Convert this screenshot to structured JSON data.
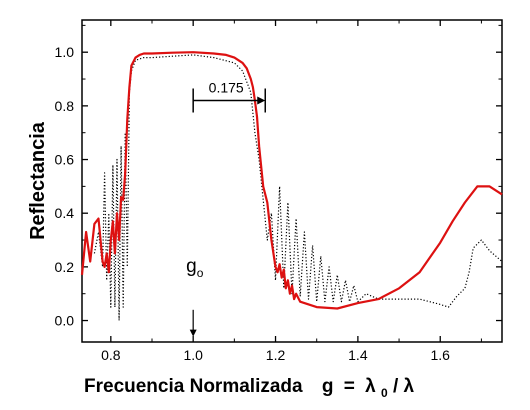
{
  "chart_data": {
    "type": "line",
    "title": "",
    "xlabel": "Frecuencia Normalizada",
    "xlabel_formula": {
      "g": "g",
      "eq": "=",
      "lam": "λ",
      "sub": "0",
      "slash": "/",
      "lam2": "λ"
    },
    "ylabel": "Reflectancia",
    "xlim": [
      0.73,
      1.75
    ],
    "ylim": [
      -0.08,
      1.12
    ],
    "x_ticks": [
      0.8,
      1.0,
      1.2,
      1.4,
      1.6
    ],
    "x_tick_labels": [
      "0.8",
      "1.0",
      "1.2",
      "1.4",
      "1.6"
    ],
    "y_ticks": [
      0.0,
      0.2,
      0.4,
      0.6,
      0.8,
      1.0
    ],
    "y_tick_labels": [
      "0.0",
      "0.2",
      "0.4",
      "0.6",
      "0.8",
      "1.0"
    ],
    "grid": false,
    "legend": "none",
    "series": [
      {
        "style": "solid",
        "color": "#dd1111",
        "x": [
          0.73,
          0.74,
          0.75,
          0.76,
          0.77,
          0.78,
          0.785,
          0.79,
          0.795,
          0.8,
          0.805,
          0.81,
          0.815,
          0.82,
          0.825,
          0.83,
          0.835,
          0.84,
          0.845,
          0.85,
          0.86,
          0.87,
          0.88,
          0.9,
          0.95,
          1.0,
          1.05,
          1.08,
          1.1,
          1.12,
          1.13,
          1.14,
          1.145,
          1.15,
          1.155,
          1.16,
          1.17,
          1.18,
          1.19,
          1.2,
          1.205,
          1.21,
          1.215,
          1.22,
          1.225,
          1.23,
          1.235,
          1.24,
          1.245,
          1.25,
          1.26,
          1.27,
          1.3,
          1.35,
          1.4,
          1.45,
          1.5,
          1.55,
          1.6,
          1.63,
          1.66,
          1.69,
          1.72,
          1.75
        ],
        "y": [
          0.17,
          0.33,
          0.22,
          0.36,
          0.38,
          0.22,
          0.2,
          0.25,
          0.18,
          0.3,
          0.37,
          0.25,
          0.4,
          0.3,
          0.46,
          0.45,
          0.55,
          0.75,
          0.87,
          0.95,
          0.98,
          0.99,
          0.995,
          0.995,
          0.998,
          1.0,
          0.995,
          0.99,
          0.98,
          0.96,
          0.94,
          0.9,
          0.87,
          0.82,
          0.76,
          0.65,
          0.5,
          0.44,
          0.3,
          0.2,
          0.18,
          0.21,
          0.16,
          0.19,
          0.12,
          0.15,
          0.1,
          0.13,
          0.08,
          0.1,
          0.07,
          0.065,
          0.05,
          0.045,
          0.065,
          0.08,
          0.12,
          0.18,
          0.29,
          0.37,
          0.44,
          0.5,
          0.5,
          0.47
        ]
      },
      {
        "style": "dotted",
        "color": "#000000",
        "x": [
          0.76,
          0.77,
          0.78,
          0.785,
          0.79,
          0.795,
          0.8,
          0.805,
          0.81,
          0.815,
          0.82,
          0.825,
          0.83,
          0.835,
          0.84,
          0.845,
          0.85,
          0.86,
          0.88,
          0.9,
          0.95,
          1.0,
          1.05,
          1.1,
          1.12,
          1.14,
          1.15,
          1.16,
          1.17,
          1.18,
          1.19,
          1.2,
          1.21,
          1.22,
          1.23,
          1.24,
          1.25,
          1.26,
          1.27,
          1.28,
          1.29,
          1.3,
          1.31,
          1.32,
          1.33,
          1.34,
          1.35,
          1.36,
          1.37,
          1.38,
          1.39,
          1.4,
          1.42,
          1.45,
          1.5,
          1.55,
          1.6,
          1.62,
          1.64,
          1.66,
          1.67,
          1.68,
          1.7,
          1.72,
          1.75
        ],
        "y": [
          0.25,
          0.33,
          0.2,
          0.55,
          0.15,
          0.4,
          0.05,
          0.58,
          0.05,
          0.6,
          0.0,
          0.65,
          0.05,
          0.7,
          0.2,
          0.85,
          0.93,
          0.97,
          0.98,
          0.98,
          0.985,
          0.99,
          0.98,
          0.96,
          0.93,
          0.85,
          0.7,
          0.6,
          0.45,
          0.3,
          0.4,
          0.15,
          0.5,
          0.12,
          0.44,
          0.1,
          0.38,
          0.09,
          0.33,
          0.08,
          0.28,
          0.07,
          0.24,
          0.07,
          0.2,
          0.07,
          0.17,
          0.07,
          0.15,
          0.07,
          0.13,
          0.07,
          0.1,
          0.08,
          0.08,
          0.08,
          0.06,
          0.05,
          0.09,
          0.12,
          0.18,
          0.27,
          0.3,
          0.26,
          0.22
        ]
      }
    ],
    "annotations": {
      "bandwidth": {
        "label": "0.175",
        "x_start": 1.0,
        "x_end": 1.175,
        "y": 0.82
      },
      "center_marker": {
        "symbol": "g",
        "subscript": "o",
        "x": 1.0,
        "y_text": 0.18,
        "y_arrow_top": 0.04,
        "y_arrow_bottom": -0.06
      }
    }
  }
}
